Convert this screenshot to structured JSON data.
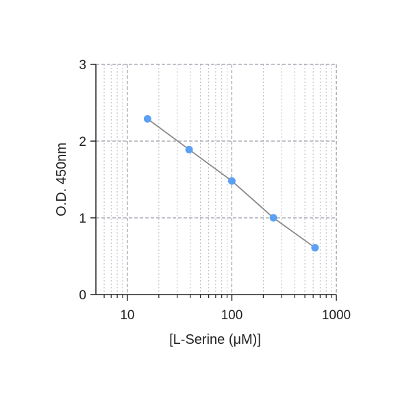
{
  "chart_data": {
    "type": "scatter",
    "title": "",
    "xlabel": "[L-Serine (μM)]",
    "ylabel": "O.D. 450nm",
    "x_scale": "log",
    "xlim": [
      5,
      1000
    ],
    "ylim": [
      0,
      3
    ],
    "x_ticks": [
      10,
      100,
      1000
    ],
    "x_tick_labels": [
      "10",
      "100",
      "1000"
    ],
    "y_ticks": [
      0,
      1,
      2,
      3
    ],
    "y_tick_labels": [
      "0",
      "1",
      "2",
      "3"
    ],
    "grid": true,
    "legend": "none",
    "series": [
      {
        "x": [
          15.6,
          39,
          100,
          250,
          625
        ],
        "y": [
          2.29,
          1.89,
          1.48,
          1.0,
          0.61
        ],
        "marker_color": "#5ba0f2",
        "line_color": "#8a8a8a"
      }
    ]
  }
}
